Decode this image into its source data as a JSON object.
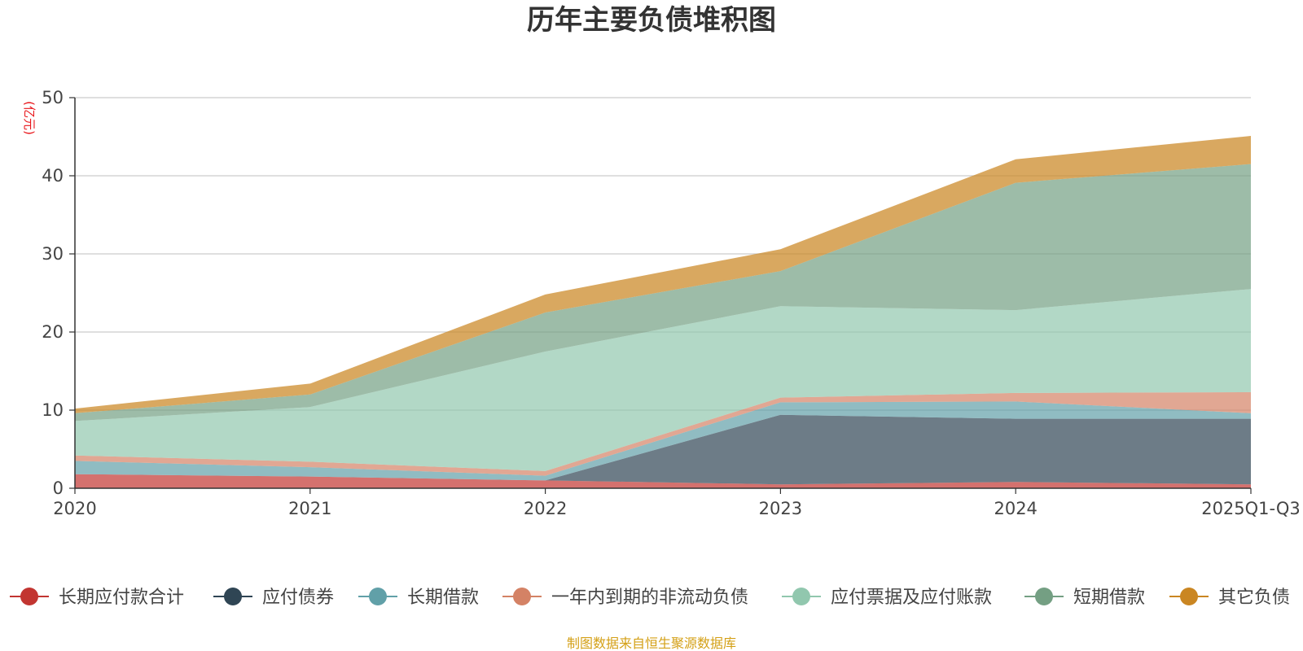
{
  "chart_data": {
    "type": "area",
    "stacked": true,
    "title": "历年主要负债堆积图",
    "ylabel": "(亿元)",
    "ylim": [
      0,
      50
    ],
    "yticks": [
      0,
      10,
      20,
      30,
      40,
      50
    ],
    "categories": [
      "2020",
      "2021",
      "2022",
      "2023",
      "2024",
      "2025Q1-Q3"
    ],
    "series": [
      {
        "name": "长期应付款合计",
        "color": "#c23531",
        "values": [
          1.8,
          1.5,
          1.0,
          0.5,
          0.8,
          0.5
        ]
      },
      {
        "name": "应付债券",
        "color": "#2f4554",
        "values": [
          0,
          0,
          0,
          8.9,
          8.1,
          8.4
        ]
      },
      {
        "name": "长期借款",
        "color": "#61a0a8",
        "values": [
          1.7,
          1.2,
          0.6,
          1.6,
          2.2,
          0.7
        ]
      },
      {
        "name": "一年内到期的非流动负债",
        "color": "#d48265",
        "values": [
          0.7,
          0.7,
          0.6,
          0.6,
          1.1,
          2.7
        ]
      },
      {
        "name": "应付票据及应付账款",
        "color": "#91c7ae",
        "values": [
          4.4,
          7.0,
          15.3,
          11.7,
          10.6,
          13.2
        ]
      },
      {
        "name": "短期借款",
        "color": "#749f83",
        "values": [
          1.0,
          1.6,
          5.0,
          4.5,
          16.3,
          16.0
        ]
      },
      {
        "name": "其它负债",
        "color": "#ca8622",
        "values": [
          0.6,
          1.4,
          2.3,
          2.8,
          3.0,
          3.6
        ]
      }
    ]
  },
  "source_note": "制图数据来自恒生聚源数据库"
}
